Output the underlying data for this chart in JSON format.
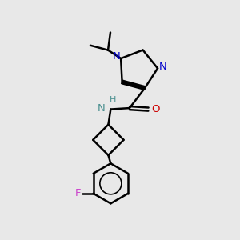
{
  "background_color": "#e8e8e8",
  "bond_color": "#000000",
  "bond_width": 1.8,
  "figsize": [
    3.0,
    3.0
  ],
  "dpi": 100,
  "colors": {
    "N": "#0000cc",
    "O": "#cc0000",
    "F": "#cc44cc",
    "NH": "#4a9090"
  }
}
